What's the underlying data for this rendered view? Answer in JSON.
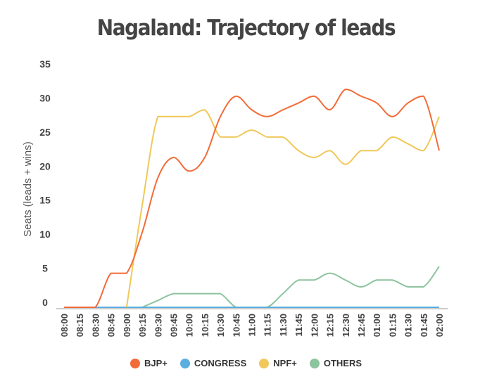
{
  "chart_data": {
    "type": "line",
    "title": "Nagaland: Trajectory of leads",
    "ylabel": "Seats (leads + wins)",
    "xlabel": "",
    "ylim": [
      0,
      35
    ],
    "yticks": [
      0,
      5,
      10,
      15,
      20,
      25,
      30,
      35
    ],
    "x": [
      "08:00",
      "08:15",
      "08:30",
      "08:45",
      "09:00",
      "09:15",
      "09:30",
      "09:45",
      "10:00",
      "10:15",
      "10:30",
      "10:45",
      "11:00",
      "11:15",
      "11:30",
      "11:45",
      "12:00",
      "12:15",
      "12:30",
      "12:45",
      "01:00",
      "01:15",
      "01:30",
      "01:45",
      "02:00"
    ],
    "legend_position": "bottom",
    "grid": false,
    "series": [
      {
        "name": "BJP+",
        "color": "#f26b38",
        "values": [
          0,
          0,
          0,
          5,
          5,
          11,
          19,
          22,
          20,
          22,
          28,
          31,
          29,
          28,
          29,
          30,
          31,
          29,
          32,
          31,
          30,
          28,
          30,
          31,
          23
        ]
      },
      {
        "name": "CONGRESS",
        "color": "#5aaee0",
        "values": [
          0,
          0,
          0,
          0,
          0,
          0,
          0,
          0,
          0,
          0,
          0,
          0,
          0,
          0,
          0,
          0,
          0,
          0,
          0,
          0,
          0,
          0,
          0,
          0,
          0
        ]
      },
      {
        "name": "NPF+",
        "color": "#f0c85a",
        "values": [
          0,
          0,
          0,
          0,
          0,
          15,
          28,
          28,
          28,
          29,
          25,
          25,
          26,
          25,
          25,
          23,
          22,
          23,
          21,
          23,
          23,
          25,
          24,
          23,
          28
        ]
      },
      {
        "name": "OTHERS",
        "color": "#8cc49e",
        "values": [
          0,
          0,
          0,
          0,
          0,
          0,
          1,
          2,
          2,
          2,
          2,
          0,
          0,
          0,
          2,
          4,
          4,
          5,
          4,
          3,
          4,
          4,
          3,
          3,
          6
        ]
      }
    ]
  }
}
